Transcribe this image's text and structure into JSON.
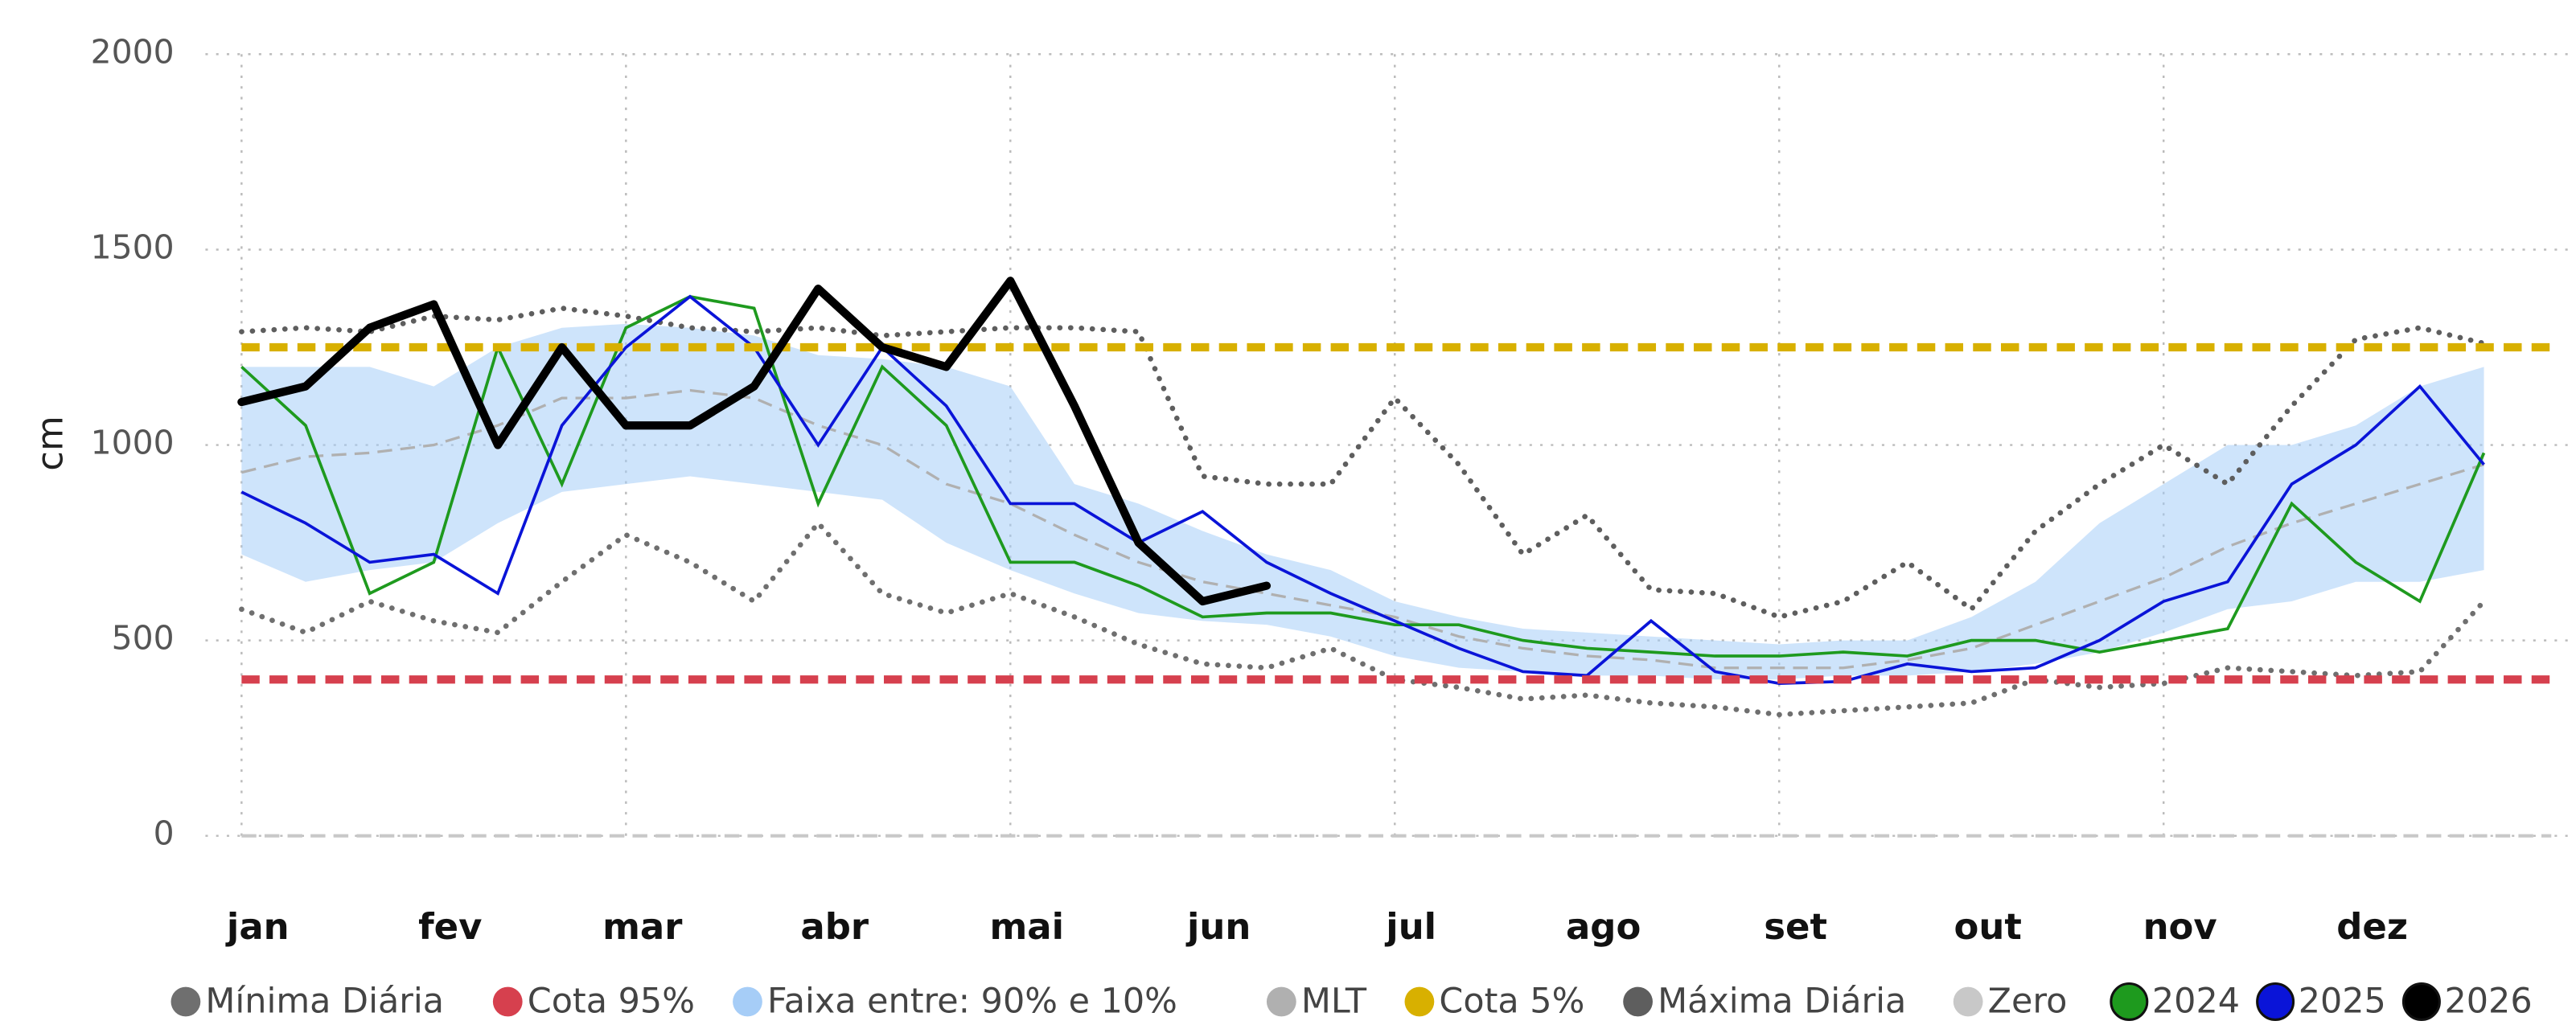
{
  "chart_data": {
    "type": "line",
    "y_label": "cm",
    "ylim": [
      0,
      2000
    ],
    "yticks": [
      0,
      500,
      1000,
      1500,
      2000
    ],
    "grid": true,
    "categories": [
      "jan",
      null,
      null,
      "fev",
      null,
      null,
      "mar",
      null,
      null,
      "abr",
      null,
      null,
      "mai",
      null,
      null,
      "jun",
      null,
      null,
      "jul",
      null,
      null,
      "ago",
      null,
      null,
      "set",
      null,
      null,
      "out",
      null,
      null,
      "nov",
      null,
      null,
      "dez",
      null,
      null
    ],
    "series": [
      {
        "name": "Mínima Diária",
        "color": "#6f6f6f",
        "style": "dotted",
        "values": [
          580,
          520,
          600,
          550,
          520,
          650,
          770,
          700,
          600,
          800,
          620,
          570,
          620,
          560,
          490,
          440,
          430,
          480,
          400,
          380,
          350,
          360,
          340,
          330,
          310,
          320,
          330,
          340,
          400,
          380,
          390,
          430,
          420,
          410,
          420,
          600
        ]
      },
      {
        "name": "Cota 95%",
        "color": "#d6404e",
        "style": "dashed",
        "value": 400
      },
      {
        "name": "Faixa entre: 90% e 10%",
        "color": "#a6cdf7",
        "style": "band",
        "upper": [
          1200,
          1200,
          1200,
          1150,
          1250,
          1300,
          1310,
          1300,
          1280,
          1230,
          1220,
          1200,
          1150,
          900,
          850,
          780,
          720,
          680,
          600,
          560,
          530,
          520,
          510,
          500,
          490,
          500,
          500,
          560,
          650,
          800,
          900,
          1000,
          1000,
          1050,
          1150,
          1200
        ],
        "lower": [
          720,
          650,
          680,
          700,
          800,
          880,
          900,
          920,
          900,
          880,
          860,
          750,
          680,
          620,
          570,
          550,
          540,
          510,
          460,
          430,
          420,
          410,
          410,
          400,
          400,
          410,
          410,
          420,
          440,
          470,
          520,
          580,
          600,
          650,
          650,
          680
        ]
      },
      {
        "name": "MLT",
        "color": "#b0b0b0",
        "style": "mlt",
        "values": [
          930,
          970,
          980,
          1000,
          1050,
          1120,
          1120,
          1140,
          1120,
          1050,
          1000,
          900,
          850,
          770,
          700,
          650,
          620,
          590,
          560,
          510,
          480,
          460,
          450,
          430,
          430,
          430,
          450,
          480,
          540,
          600,
          660,
          740,
          800,
          850,
          900,
          950
        ]
      },
      {
        "name": "Cota 5%",
        "color": "#d8b000",
        "style": "dashed",
        "value": 1250
      },
      {
        "name": "Máxima Diária",
        "color": "#5e5e5e",
        "style": "dotted",
        "values": [
          1290,
          1300,
          1290,
          1330,
          1320,
          1350,
          1330,
          1300,
          1290,
          1300,
          1280,
          1290,
          1300,
          1300,
          1290,
          920,
          900,
          900,
          1120,
          950,
          720,
          820,
          630,
          620,
          560,
          600,
          700,
          580,
          780,
          900,
          1000,
          900,
          1100,
          1270,
          1300,
          1260
        ]
      },
      {
        "name": "Zero",
        "color": "#c8c8c8",
        "style": "zero",
        "value": 0
      },
      {
        "name": "2024",
        "color": "#1e9a1e",
        "style": "solid",
        "values": [
          1200,
          1050,
          620,
          700,
          1250,
          900,
          1300,
          1380,
          1350,
          850,
          1200,
          1050,
          700,
          700,
          640,
          560,
          570,
          570,
          540,
          540,
          500,
          480,
          470,
          460,
          460,
          470,
          460,
          500,
          500,
          470,
          500,
          530,
          850,
          700,
          600,
          980
        ]
      },
      {
        "name": "2025",
        "color": "#0a14d8",
        "style": "solid",
        "values": [
          880,
          800,
          700,
          720,
          620,
          1050,
          1250,
          1380,
          1250,
          1000,
          1250,
          1100,
          850,
          850,
          750,
          830,
          700,
          620,
          550,
          480,
          420,
          410,
          550,
          420,
          390,
          395,
          440,
          420,
          430,
          500,
          600,
          650,
          900,
          1000,
          1150,
          950
        ]
      },
      {
        "name": "2026",
        "color": "#000000",
        "style": "thick",
        "values": [
          1110,
          1150,
          1300,
          1360,
          1000,
          1250,
          1050,
          1050,
          1150,
          1400,
          1250,
          1200,
          1420,
          1100,
          750,
          600,
          640,
          null,
          null,
          null,
          null,
          null,
          null,
          null,
          null,
          null,
          null,
          null,
          null,
          null,
          null,
          null,
          null,
          null,
          null,
          null
        ]
      }
    ]
  }
}
